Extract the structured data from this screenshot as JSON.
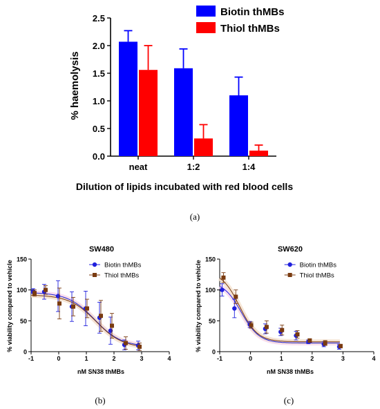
{
  "chart_data": [
    {
      "panel": "(a)",
      "type": "bar",
      "categories": [
        "neat",
        "1:2",
        "1:4"
      ],
      "series": [
        {
          "name": "Biotin thMBs",
          "color": "#0000ff",
          "values": [
            2.07,
            1.59,
            1.1
          ],
          "errors": [
            0.2,
            0.35,
            0.33
          ]
        },
        {
          "name": "Thiol thMBs",
          "color": "#ff0000",
          "values": [
            1.56,
            0.32,
            0.1
          ],
          "errors": [
            0.44,
            0.25,
            0.1
          ]
        }
      ],
      "ylabel": "% haemolysis",
      "xlabel": "Dilution of lipids incubated with red blood cells",
      "ylim": [
        0,
        2.5
      ],
      "yticks": [
        "0.0",
        "0.5",
        "1.0",
        "1.5",
        "2.0",
        "2.5"
      ],
      "grid": false,
      "legend": "top-right"
    },
    {
      "panel": "(b)",
      "type": "scatter",
      "title": "SW480",
      "xlabel": "nM SN38 thMBs",
      "ylabel": "% viability compared to vehicle",
      "xlim": [
        -1,
        4
      ],
      "ylim": [
        0,
        150
      ],
      "xticks": [
        "-1",
        "0",
        "1",
        "2",
        "3",
        "4"
      ],
      "yticks": [
        "0",
        "50",
        "100",
        "150"
      ],
      "legend": "top-right",
      "series": [
        {
          "name": "Biotin thMBs",
          "color": "#2020dd",
          "x": [
            -0.9,
            -0.5,
            0.0,
            0.5,
            1.0,
            1.5,
            1.9,
            2.4,
            2.9
          ],
          "y": [
            98,
            97,
            90,
            73,
            70,
            55,
            34,
            11,
            10
          ],
          "err": [
            4,
            12,
            25,
            24,
            28,
            25,
            22,
            8,
            7
          ],
          "fit": {
            "top": 96,
            "bottom": 8,
            "logIC50": 1.3,
            "hill": -0.9
          }
        },
        {
          "name": "Thiol thMBs",
          "color": "#7a3b10",
          "x": [
            -0.9,
            -0.5,
            0.0,
            0.5,
            1.0,
            1.5,
            1.9,
            2.4,
            2.9
          ],
          "y": [
            95,
            100,
            78,
            73,
            70,
            58,
            42,
            14,
            8
          ],
          "err": [
            5,
            7,
            25,
            15,
            15,
            25,
            20,
            10,
            6
          ],
          "fit": {
            "top": 92,
            "bottom": 6,
            "logIC50": 1.35,
            "hill": -0.9
          }
        }
      ]
    },
    {
      "panel": "(c)",
      "type": "scatter",
      "title": "SW620",
      "xlabel": "nM SN38 thMBs",
      "ylabel": "% viability compared to vehicle",
      "xlim": [
        -1,
        4
      ],
      "ylim": [
        0,
        150
      ],
      "xticks": [
        "-1",
        "0",
        "1",
        "2",
        "3",
        "4"
      ],
      "yticks": [
        "0",
        "50",
        "100",
        "150"
      ],
      "legend": "top-right",
      "series": [
        {
          "name": "Biotin thMBs",
          "color": "#2020dd",
          "x": [
            -0.9,
            -0.5,
            0.0,
            0.5,
            1.0,
            1.5,
            1.9,
            2.4,
            2.9
          ],
          "y": [
            100,
            70,
            44,
            37,
            32,
            26,
            16,
            12,
            8
          ],
          "err": [
            10,
            15,
            5,
            8,
            6,
            7,
            3,
            4,
            4
          ],
          "fit": {
            "top": 114,
            "bottom": 14,
            "logIC50": -0.3,
            "hill": -1.5
          }
        },
        {
          "name": "Thiol thMBs",
          "color": "#7a3b10",
          "x": [
            -0.9,
            -0.5,
            0.0,
            0.5,
            1.0,
            1.5,
            1.9,
            2.4,
            2.9
          ],
          "y": [
            120,
            89,
            43,
            40,
            35,
            28,
            18,
            14,
            9
          ],
          "err": [
            8,
            11,
            5,
            10,
            8,
            6,
            3,
            4,
            3
          ],
          "fit": {
            "top": 130,
            "bottom": 16,
            "logIC50": -0.35,
            "hill": -1.5
          }
        }
      ]
    }
  ],
  "captions": [
    "(a)",
    "(b)",
    "(c)"
  ]
}
